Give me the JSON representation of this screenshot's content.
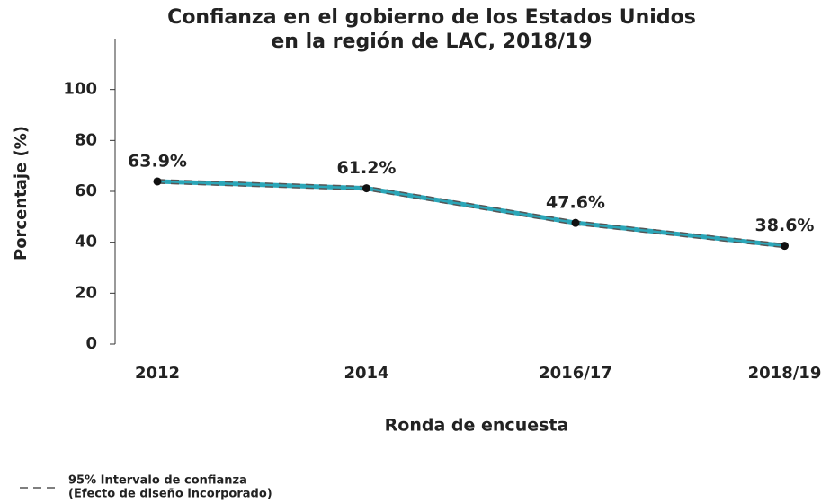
{
  "chart_data": {
    "type": "line",
    "title": [
      "Confianza en el gobierno de los Estados Unidos",
      "en la región de LAC, 2018/19"
    ],
    "x_label": "Ronda de encuesta",
    "y_label": "Porcentaje (%)",
    "categories": [
      "2012",
      "2014",
      "2016/17",
      "2018/19"
    ],
    "values": [
      63.9,
      61.2,
      47.6,
      38.6
    ],
    "value_labels": [
      "63.9%",
      "61.2%",
      "47.6%",
      "38.6%"
    ],
    "ci_upper": [
      64.6,
      61.9,
      48.3,
      39.3
    ],
    "ci_lower": [
      63.2,
      60.5,
      46.9,
      37.9
    ],
    "color": "#2ba6b8",
    "ci_color": "#555555",
    "legend_label": [
      "95% Intervalo de confianza",
      "(Efecto de diseño incorporado)"
    ],
    "ylim": [
      0,
      120
    ],
    "yticks": [
      0,
      20,
      40,
      60,
      80,
      100
    ]
  }
}
